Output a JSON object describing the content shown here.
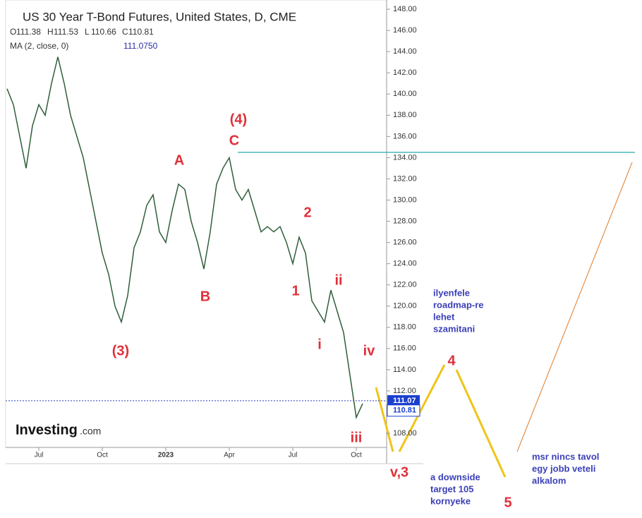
{
  "chart_data": {
    "type": "line",
    "title": "US 30 Year T-Bond Futures, United States, D, CME",
    "ohlc": [
      "O",
      "111.38",
      "H",
      "111.53",
      "L",
      "110.66",
      "C",
      "110.81"
    ],
    "indicator": "MA (2, close, 0)",
    "indicator_value": "111.0750",
    "logo": "Investing",
    "logo_suffix": ".com",
    "categories": [
      null,
      null,
      null,
      null,
      null,
      "Jul",
      null,
      null,
      null,
      null,
      null,
      null,
      null,
      null,
      null,
      "Oct",
      null,
      null,
      null,
      null,
      null,
      null,
      null,
      null,
      null,
      "2023",
      null,
      null,
      null,
      null,
      null,
      null,
      null,
      null,
      null,
      "Apr",
      null,
      null,
      null,
      null,
      null,
      null,
      null,
      null,
      null,
      "Jul",
      null,
      null,
      null,
      null,
      null,
      null,
      null,
      null,
      null,
      "Oct",
      null
    ],
    "values": [
      140.5,
      139,
      136,
      133,
      137,
      139,
      138,
      141,
      143.5,
      141,
      138,
      136,
      134,
      131,
      128,
      125,
      123,
      120,
      118.5,
      121,
      125.5,
      127,
      129.5,
      130.5,
      127,
      126,
      129,
      131.5,
      131,
      128,
      126,
      123.5,
      127,
      131.5,
      133,
      134,
      131,
      130,
      131,
      129,
      127,
      127.5,
      127,
      127.5,
      126,
      124,
      126.5,
      125,
      120.5,
      119.5,
      118.5,
      121.5,
      119.5,
      117.5,
      113.5,
      109.5,
      110.8
    ],
    "color": "#2f5e3a",
    "ylim": [
      106.67,
      148.87
    ],
    "yticks": [
      {
        "value": 108,
        "label": "108.00"
      },
      {
        "value": 110,
        "label": "110.00"
      },
      {
        "value": 112,
        "label": "112.00"
      },
      {
        "value": 114,
        "label": "114.00"
      },
      {
        "value": 116,
        "label": "116.00"
      },
      {
        "value": 118,
        "label": "118.00"
      },
      {
        "value": 120,
        "label": "120.00"
      },
      {
        "value": 122,
        "label": "122.00"
      },
      {
        "value": 124,
        "label": "124.00"
      },
      {
        "value": 126,
        "label": "126.00"
      },
      {
        "value": 128,
        "label": "128.00"
      },
      {
        "value": 130,
        "label": "130.00"
      },
      {
        "value": 132,
        "label": "132.00"
      },
      {
        "value": 134,
        "label": "134.00"
      },
      {
        "value": 136,
        "label": "136.00"
      },
      {
        "value": 138,
        "label": "138.00"
      },
      {
        "value": 140,
        "label": "140.00"
      },
      {
        "value": 142,
        "label": "142.00"
      },
      {
        "value": 144,
        "label": "144.00"
      },
      {
        "value": 146,
        "label": "146.00"
      },
      {
        "value": 148,
        "label": "148.00"
      }
    ],
    "resistance": 134.5,
    "last_price": {
      "value": 111.07,
      "label": "111.07"
    },
    "close_price": {
      "value": 110.81,
      "label": "110.81"
    },
    "annotations": [
      "(4)",
      "C",
      "A",
      "B",
      "(3)",
      "2",
      "1",
      "ii",
      "i",
      "iv",
      "iii",
      "v,3",
      "4",
      "5"
    ],
    "notes": [
      [
        "ilyenfele",
        "roadmap-re",
        "lehet",
        "szamitani"
      ],
      [
        "a downside",
        "target 105",
        "kornyeke"
      ],
      [
        "msr nincs tavol",
        "egy jobb veteli",
        "alkalom"
      ]
    ]
  }
}
